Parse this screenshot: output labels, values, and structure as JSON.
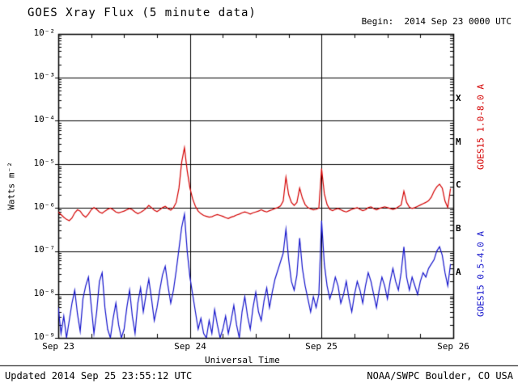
{
  "header": {
    "title": "GOES Xray Flux (5 minute data)",
    "begin": "Begin:  2014 Sep 23 0000 UTC"
  },
  "footer": {
    "updated": "Updated 2014 Sep 25 23:55:12 UTC",
    "source": "NOAA/SWPC Boulder, CO USA"
  },
  "chart_data": {
    "type": "line",
    "title": "GOES Xray Flux (5 minute data)",
    "xlabel": "Universal Time",
    "ylabel": "Watts m⁻²",
    "x_ticks": [
      "Sep 23",
      "Sep 24",
      "Sep 25",
      "Sep 26"
    ],
    "y_ticks": [
      "10⁻²",
      "10⁻³",
      "10⁻⁴",
      "10⁻⁵",
      "10⁻⁶",
      "10⁻⁷",
      "10⁻⁸",
      "10⁻⁹"
    ],
    "y_log_range": [
      -9,
      -2
    ],
    "x_range_days": [
      0,
      3
    ],
    "grid": "log decades horizontal, day boundaries vertical",
    "legend_position": "right-rotated",
    "flare_class_labels": [
      "X",
      "M",
      "C",
      "B",
      "A"
    ],
    "flare_class_log_centers": [
      -3.5,
      -4.5,
      -5.5,
      -6.5,
      -7.5
    ],
    "points_per_day": 48,
    "series": [
      {
        "name": "GOES15 1.0-8.0 A",
        "color": "#d40000",
        "log10_values": [
          -6.1,
          -6.16,
          -6.22,
          -6.27,
          -6.3,
          -6.24,
          -6.12,
          -6.05,
          -6.08,
          -6.17,
          -6.22,
          -6.15,
          -6.05,
          -6.0,
          -6.04,
          -6.1,
          -6.13,
          -6.08,
          -6.04,
          -6.01,
          -6.05,
          -6.1,
          -6.12,
          -6.1,
          -6.08,
          -6.05,
          -6.02,
          -6.05,
          -6.1,
          -6.14,
          -6.11,
          -6.07,
          -6.02,
          -5.95,
          -6.0,
          -6.06,
          -6.09,
          -6.05,
          -6.0,
          -5.97,
          -6.02,
          -6.06,
          -6.0,
          -5.88,
          -5.55,
          -4.95,
          -4.62,
          -5.15,
          -5.55,
          -5.8,
          -5.97,
          -6.08,
          -6.14,
          -6.18,
          -6.2,
          -6.22,
          -6.21,
          -6.18,
          -6.16,
          -6.18,
          -6.2,
          -6.23,
          -6.25,
          -6.22,
          -6.2,
          -6.17,
          -6.15,
          -6.12,
          -6.1,
          -6.12,
          -6.15,
          -6.12,
          -6.1,
          -6.08,
          -6.05,
          -6.08,
          -6.1,
          -6.07,
          -6.05,
          -6.02,
          -6.0,
          -5.96,
          -5.85,
          -5.3,
          -5.7,
          -5.88,
          -5.95,
          -5.88,
          -5.55,
          -5.78,
          -5.93,
          -6.0,
          -6.03,
          -6.05,
          -6.04,
          -6.01,
          -5.1,
          -5.68,
          -5.93,
          -6.04,
          -6.07,
          -6.04,
          -6.02,
          -6.05,
          -6.08,
          -6.1,
          -6.07,
          -6.04,
          -6.02,
          -6.0,
          -6.04,
          -6.07,
          -6.05,
          -6.0,
          -5.98,
          -6.02,
          -6.05,
          -6.02,
          -6.0,
          -5.98,
          -6.0,
          -6.02,
          -6.04,
          -6.02,
          -5.98,
          -5.94,
          -5.62,
          -5.88,
          -5.99,
          -6.02,
          -6.0,
          -5.97,
          -5.94,
          -5.91,
          -5.88,
          -5.84,
          -5.76,
          -5.62,
          -5.52,
          -5.46,
          -5.55,
          -5.85,
          -6.0,
          -5.56
        ]
      },
      {
        "name": "GOES15 0.5-4.0 A",
        "color": "#1414cc",
        "log10_values": [
          -8.3,
          -8.9,
          -8.5,
          -9.0,
          -8.6,
          -8.2,
          -7.9,
          -8.45,
          -8.85,
          -8.1,
          -7.8,
          -7.6,
          -8.25,
          -8.9,
          -8.4,
          -7.7,
          -7.5,
          -8.3,
          -8.8,
          -9.0,
          -8.55,
          -8.2,
          -8.7,
          -9.0,
          -8.8,
          -8.3,
          -7.9,
          -8.5,
          -8.9,
          -8.2,
          -7.85,
          -8.4,
          -8.0,
          -7.65,
          -8.1,
          -8.6,
          -8.3,
          -7.9,
          -7.55,
          -7.35,
          -7.8,
          -8.2,
          -7.9,
          -7.45,
          -6.95,
          -6.45,
          -6.15,
          -7.0,
          -7.6,
          -8.0,
          -8.4,
          -8.8,
          -8.55,
          -8.9,
          -9.0,
          -8.6,
          -8.9,
          -8.35,
          -8.7,
          -9.0,
          -8.8,
          -8.5,
          -8.9,
          -8.6,
          -8.25,
          -8.7,
          -9.0,
          -8.4,
          -8.05,
          -8.5,
          -8.8,
          -8.3,
          -7.95,
          -8.4,
          -8.6,
          -8.15,
          -7.85,
          -8.3,
          -7.95,
          -7.65,
          -7.45,
          -7.25,
          -7.05,
          -6.5,
          -7.2,
          -7.7,
          -7.9,
          -7.55,
          -6.7,
          -7.4,
          -7.8,
          -8.1,
          -8.4,
          -8.05,
          -8.3,
          -8.0,
          -6.3,
          -7.3,
          -7.8,
          -8.1,
          -7.9,
          -7.6,
          -7.8,
          -8.2,
          -8.0,
          -7.7,
          -8.1,
          -8.4,
          -8.0,
          -7.7,
          -7.9,
          -8.2,
          -7.8,
          -7.5,
          -7.7,
          -8.0,
          -8.3,
          -7.9,
          -7.6,
          -7.8,
          -8.1,
          -7.7,
          -7.4,
          -7.7,
          -7.9,
          -7.5,
          -6.9,
          -7.6,
          -7.9,
          -7.6,
          -7.8,
          -8.0,
          -7.7,
          -7.5,
          -7.6,
          -7.4,
          -7.3,
          -7.2,
          -7.0,
          -6.9,
          -7.1,
          -7.5,
          -7.8,
          -7.3
        ]
      }
    ]
  }
}
